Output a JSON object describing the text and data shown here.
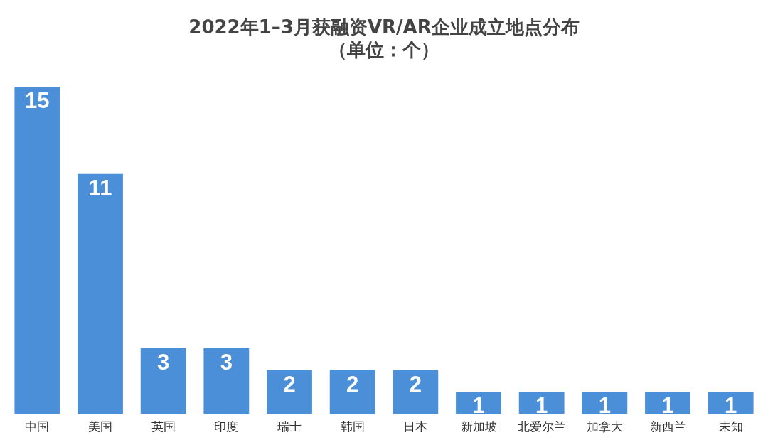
{
  "chart_data": {
    "type": "bar",
    "title": "2022年1–3月获融资VR/AR企业成立地点分布",
    "subtitle": "（单位：个）",
    "categories": [
      "中国",
      "美国",
      "英国",
      "印度",
      "瑞士",
      "韩国",
      "日本",
      "新加坡",
      "北爱尔兰",
      "加拿大",
      "新西兰",
      "未知"
    ],
    "values": [
      15,
      11,
      3,
      3,
      2,
      2,
      2,
      1,
      1,
      1,
      1,
      1
    ],
    "color": "#4a8fd8",
    "data_labels": true,
    "tick_labels": "x"
  }
}
